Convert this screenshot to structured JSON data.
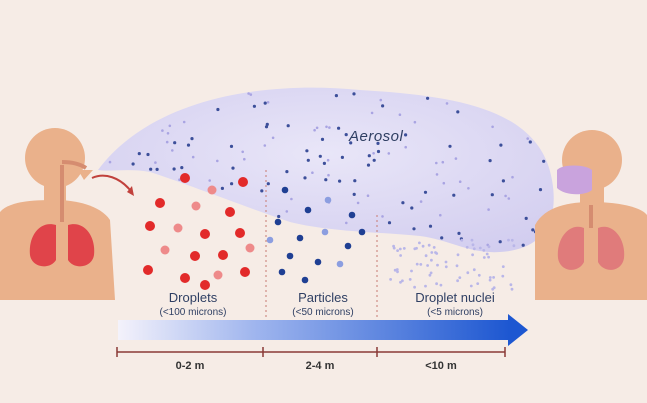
{
  "aerosol_label": "Aerosol",
  "categories": [
    {
      "title": "Droplets",
      "size": "(<100 microns)"
    },
    {
      "title": "Particles",
      "size": "(<50 microns)"
    },
    {
      "title": "Droplet nuclei",
      "size": "(<5 microns)"
    }
  ],
  "distances": [
    "0-2 m",
    "2-4 m",
    "<10 m"
  ],
  "colors": {
    "droplet": "#e22a2a",
    "particle": "#1f3f93",
    "nuclei": "#b9b6e8",
    "cloud": "#dcd8f3",
    "skin": "#eab18b",
    "lungs_left": "#e0444a",
    "lungs_right": "#e07b7b",
    "mask": "#c9a3dd",
    "arrow": "#1d57d1"
  },
  "icons": [
    "person-left-exhaling",
    "person-right-masked"
  ]
}
